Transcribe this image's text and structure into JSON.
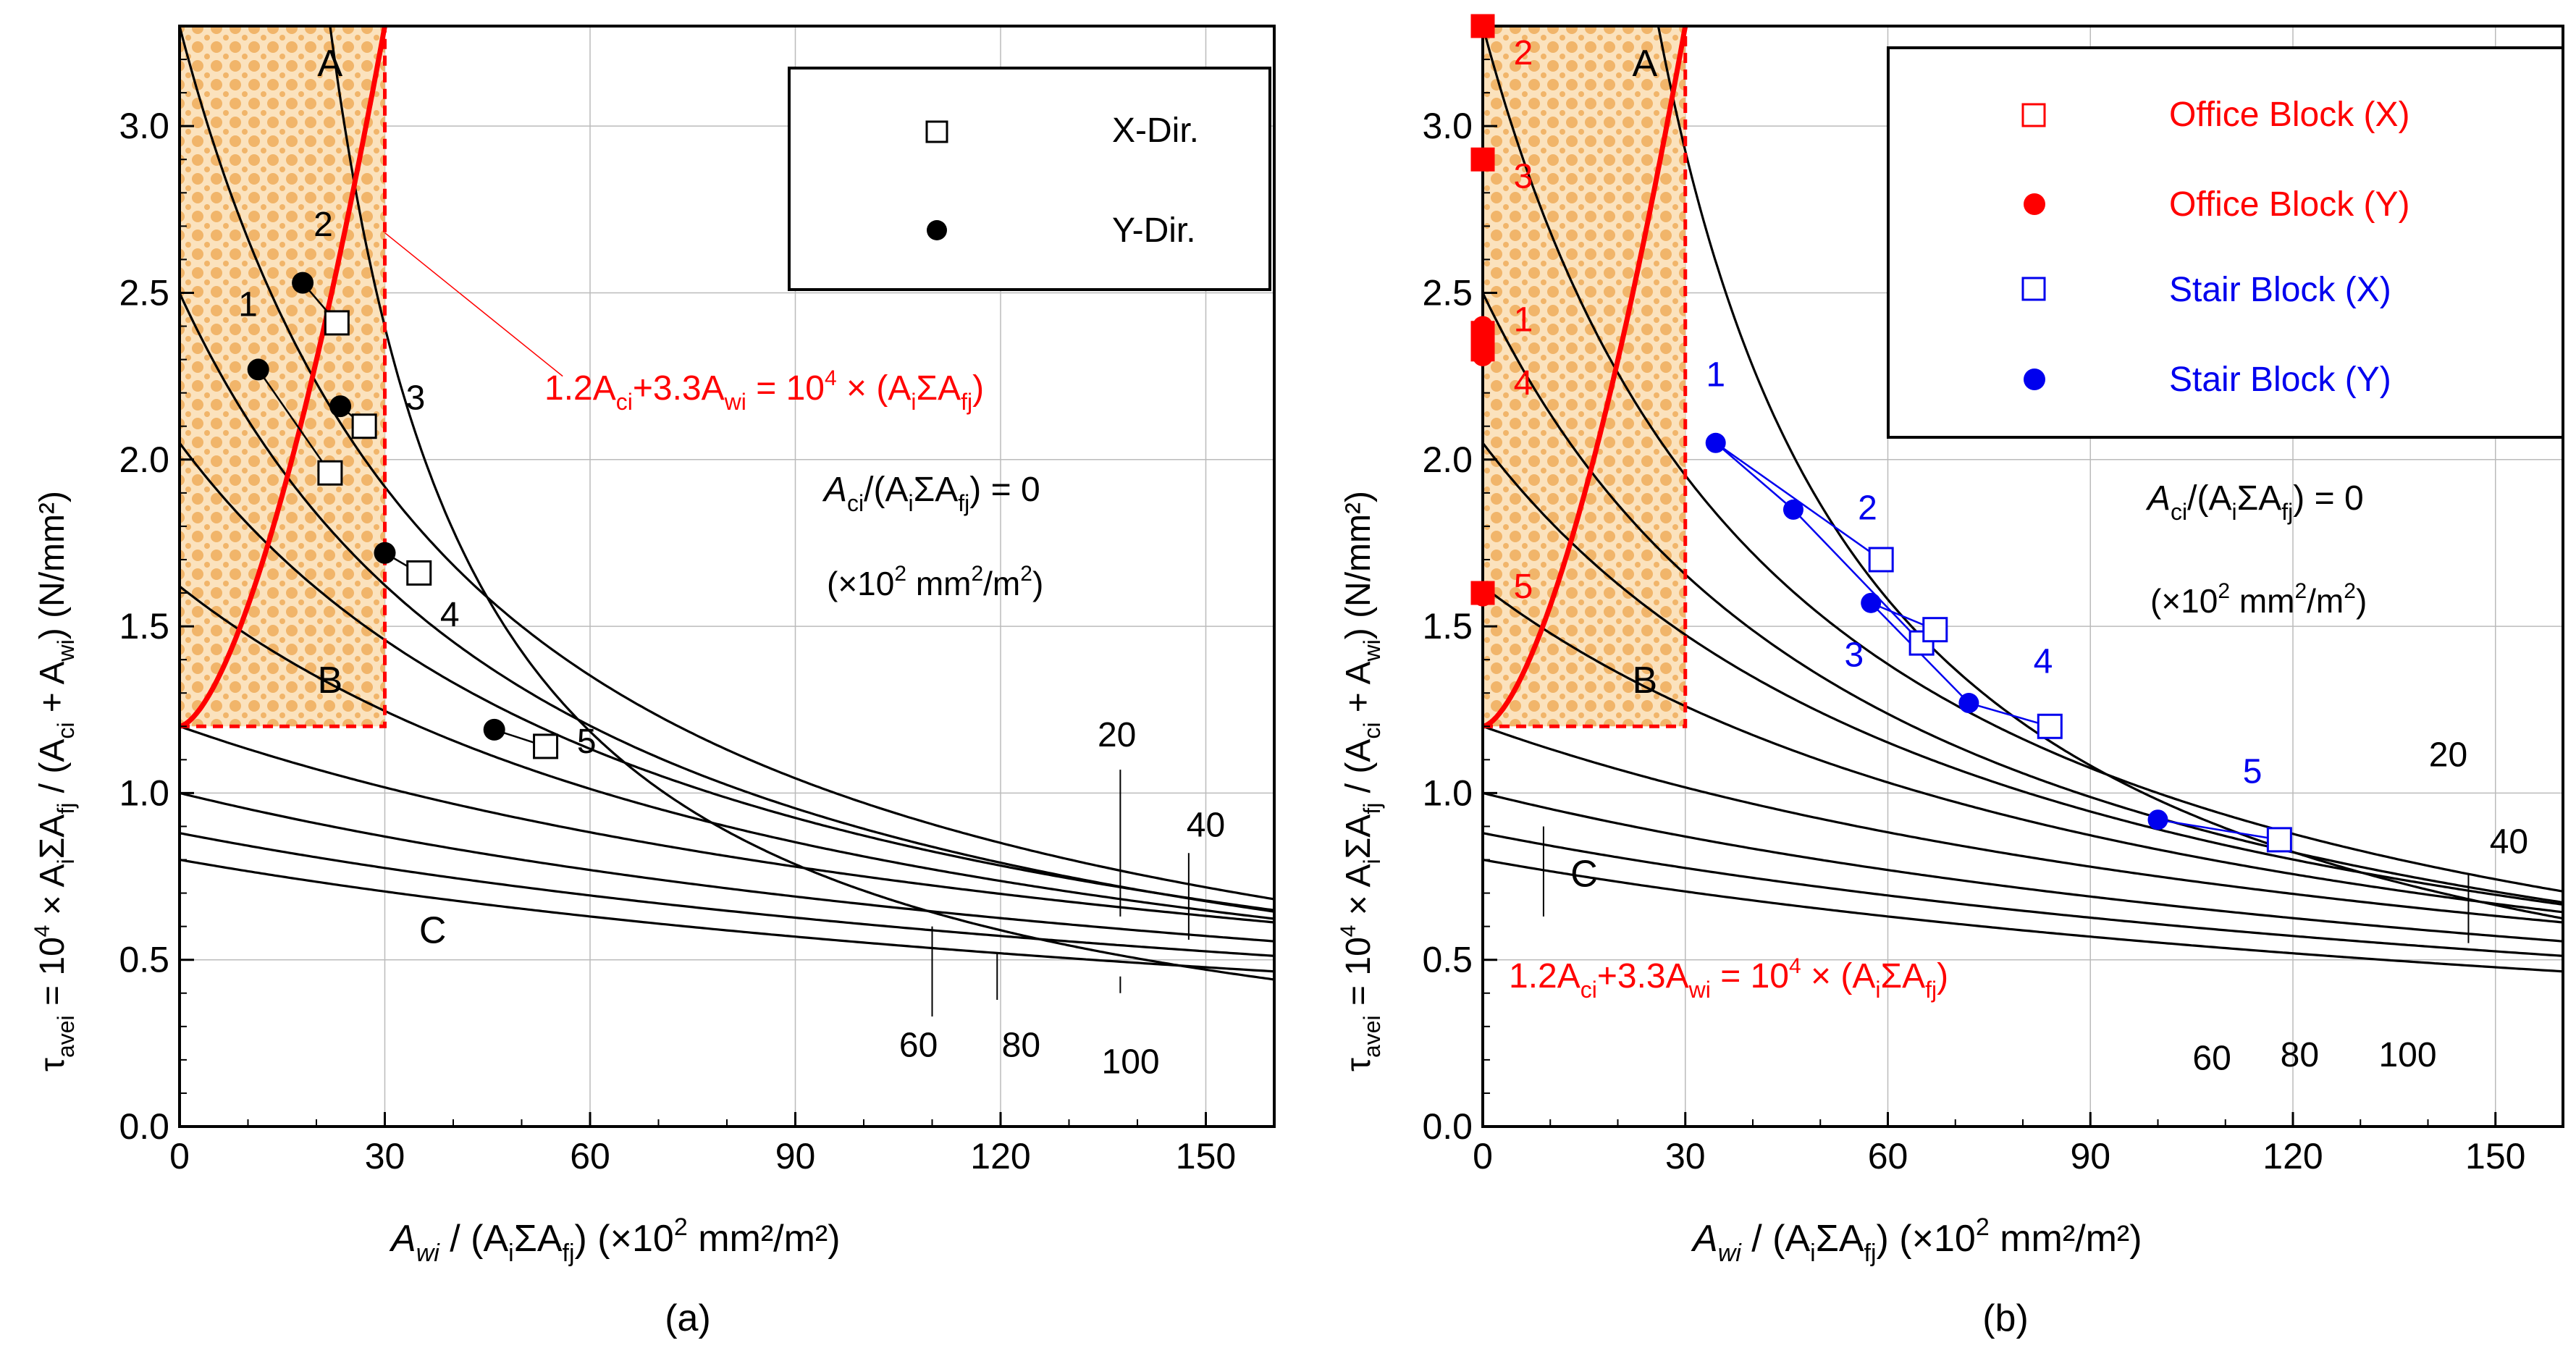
{
  "colors": {
    "axis": "#000000",
    "grid": "#bbbbbb",
    "red": "#ff0000",
    "blue": "#0000ee",
    "hatch_fill": "#f6c98e",
    "hatch_stroke": "#e39a3a"
  },
  "chart_data": [
    {
      "type": "scatter",
      "panel_label": "(a)",
      "xlim": [
        0,
        160
      ],
      "ylim": [
        0,
        3.3
      ],
      "x_ticks": [
        "0",
        "30",
        "60",
        "90",
        "120",
        "150"
      ],
      "y_ticks": [
        "0.0",
        "0.5",
        "1.0",
        "1.5",
        "2.0",
        "2.5",
        "3.0"
      ],
      "grid": true,
      "xlabel": {
        "a1": "A",
        "s1": "wi",
        "mid": " / (A",
        "s2": "i",
        "mid2": "ΣA",
        "s3": "fj",
        "tail": ") (×10",
        "sup": "2",
        "end": " mm²/m²)"
      },
      "ylabel": {
        "t1": "τ",
        "s1": "avei",
        "t2": " = 10",
        "sup": "4",
        "t3": " × A",
        "s2": "i",
        "t4": "ΣA",
        "s3": "fj",
        "t5": " / (A",
        "s4": "ci",
        "t6": " + A",
        "s5": "wi",
        "t7": ") (N/mm²)"
      },
      "curve_labels": [
        {
          "text": "20",
          "x": 137,
          "y": 1.14
        },
        {
          "text": "40",
          "x": 150,
          "y": 0.87
        },
        {
          "text": "60",
          "x": 108,
          "y": 0.21
        },
        {
          "text": "80",
          "x": 123,
          "y": 0.21
        },
        {
          "text": "100",
          "x": 139,
          "y": 0.16
        }
      ],
      "zone_labels": [
        {
          "text": "A",
          "x": 22,
          "y": 3.15
        },
        {
          "text": "B",
          "x": 22,
          "y": 1.3
        },
        {
          "text": "C",
          "x": 37,
          "y": 0.55
        }
      ],
      "annotation": {
        "t1": "1.2A",
        "s1": "ci",
        "t2": "+3.3A",
        "s2": "wi",
        "t3": " = 10",
        "sup": "4",
        "t4": " × (A",
        "s3": "i",
        "t5": "ΣA",
        "s4": "fj",
        "t6": ")"
      },
      "zero_label": {
        "t1": "A",
        "s1": "ci",
        "t2": "/(A",
        "s2": "i",
        "t3": "ΣA",
        "s3": "fj",
        "t4": ") = 0"
      },
      "zero_unit": {
        "t1": "(×10",
        "sup": "2",
        "t2": " mm",
        "sup2": "2",
        "t3": "/m",
        "sup3": "2",
        "t4": ")"
      },
      "legend": [
        {
          "name": "X-Dir.",
          "marker": "square-open"
        },
        {
          "name": "Y-Dir.",
          "marker": "circle-filled"
        }
      ],
      "series": [
        {
          "name": "X-Dir.",
          "points": [
            {
              "x": 22,
              "y": 1.96
            },
            {
              "x": 23,
              "y": 2.41,
              "label": "2"
            },
            {
              "x": 27,
              "y": 2.1
            },
            {
              "x": 35,
              "y": 1.66
            },
            {
              "x": 53.5,
              "y": 1.14
            }
          ]
        },
        {
          "name": "Y-Dir.",
          "points": [
            {
              "x": 11.5,
              "y": 2.27,
              "label": "1"
            },
            {
              "x": 18,
              "y": 2.53
            },
            {
              "x": 23.5,
              "y": 2.16
            },
            {
              "x": 30,
              "y": 1.72
            },
            {
              "x": 46,
              "y": 1.19
            }
          ]
        }
      ],
      "point_labels": [
        {
          "text": "1",
          "x": 10,
          "y": 2.43
        },
        {
          "text": "2",
          "x": 21,
          "y": 2.67
        },
        {
          "text": "3",
          "x": 34.5,
          "y": 2.15
        },
        {
          "text": "4",
          "x": 39.5,
          "y": 1.5
        },
        {
          "text": "5",
          "x": 59.5,
          "y": 1.12
        }
      ]
    },
    {
      "type": "scatter",
      "panel_label": "(b)",
      "xlim": [
        0,
        160
      ],
      "ylim": [
        0,
        3.3
      ],
      "x_ticks": [
        "0",
        "30",
        "60",
        "90",
        "120",
        "150"
      ],
      "y_ticks": [
        "0.0",
        "0.5",
        "1.0",
        "1.5",
        "2.0",
        "2.5",
        "3.0"
      ],
      "grid": true,
      "xlabel": {
        "a1": "A",
        "s1": "wi",
        "mid": " / (A",
        "s2": "i",
        "mid2": "ΣA",
        "s3": "fj",
        "tail": ") (×10",
        "sup": "2",
        "end": " mm²/m²)"
      },
      "ylabel": {
        "t1": "τ",
        "s1": "avei",
        "t2": " = 10",
        "sup": "4",
        "t3": " × A",
        "s2": "i",
        "t4": "ΣA",
        "s3": "fj",
        "t5": " / (A",
        "s4": "ci",
        "t6": " + A",
        "s5": "wi",
        "t7": ") (N/mm²)"
      },
      "curve_labels": [
        {
          "text": "20",
          "x": 143,
          "y": 1.08
        },
        {
          "text": "40",
          "x": 152,
          "y": 0.82
        },
        {
          "text": "60",
          "x": 108,
          "y": 0.17
        },
        {
          "text": "80",
          "x": 121,
          "y": 0.18
        },
        {
          "text": "100",
          "x": 137,
          "y": 0.18
        }
      ],
      "zone_labels": [
        {
          "text": "A",
          "x": 24,
          "y": 3.15
        },
        {
          "text": "B",
          "x": 24,
          "y": 1.3
        },
        {
          "text": "C",
          "x": 15,
          "y": 0.72
        }
      ],
      "annotation": {
        "t1": "1.2A",
        "s1": "ci",
        "t2": "+3.3A",
        "s2": "wi",
        "t3": " = 10",
        "sup": "4",
        "t4": " × (A",
        "s3": "i",
        "t5": "ΣA",
        "s4": "fj",
        "t6": ")"
      },
      "zero_label": {
        "t1": "A",
        "s1": "ci",
        "t2": "/(A",
        "s2": "i",
        "t3": "ΣA",
        "s3": "fj",
        "t4": ") = 0"
      },
      "zero_unit": {
        "t1": "(×10",
        "sup": "2",
        "t2": " mm",
        "sup2": "2",
        "t3": "/m",
        "sup3": "2",
        "t4": ")"
      },
      "legend": [
        {
          "name": "Office Block (X)",
          "marker": "square-open",
          "color": "#ff0000"
        },
        {
          "name": "Office Block (Y)",
          "marker": "circle-filled",
          "color": "#ff0000"
        },
        {
          "name": "Stair Block (X)",
          "marker": "square-open",
          "color": "#0000ee"
        },
        {
          "name": "Stair Block (Y)",
          "marker": "circle-filled",
          "color": "#0000ee"
        }
      ],
      "series": [
        {
          "name": "Office Block (X)",
          "points": [
            {
              "x": 0,
              "y": 3.3
            },
            {
              "x": 0,
              "y": 2.9
            },
            {
              "x": 0,
              "y": 2.38
            },
            {
              "x": 0,
              "y": 2.33
            },
            {
              "x": 0,
              "y": 1.6
            }
          ]
        },
        {
          "name": "Office Block (Y)",
          "points": [
            {
              "x": 0,
              "y": 3.3
            },
            {
              "x": 0,
              "y": 2.9
            },
            {
              "x": 0,
              "y": 2.4
            },
            {
              "x": 0,
              "y": 2.31
            },
            {
              "x": 0,
              "y": 1.59
            }
          ]
        },
        {
          "name": "Stair Block (X)",
          "points": [
            {
              "x": 59,
              "y": 1.7
            },
            {
              "x": 65,
              "y": 1.45
            },
            {
              "x": 67,
              "y": 1.49
            },
            {
              "x": 84,
              "y": 1.2
            },
            {
              "x": 118,
              "y": 0.86
            }
          ]
        },
        {
          "name": "Stair Block (Y)",
          "points": [
            {
              "x": 34.5,
              "y": 2.05
            },
            {
              "x": 46,
              "y": 1.85
            },
            {
              "x": 57.5,
              "y": 1.57
            },
            {
              "x": 72,
              "y": 1.27
            },
            {
              "x": 100,
              "y": 0.92
            }
          ]
        }
      ],
      "point_labels_red": [
        {
          "text": "2",
          "x": 6,
          "y": 3.22
        },
        {
          "text": "3",
          "x": 6,
          "y": 2.85
        },
        {
          "text": "1",
          "x": 6,
          "y": 2.42
        },
        {
          "text": "4",
          "x": 6,
          "y": 2.23
        },
        {
          "text": "5",
          "x": 6,
          "y": 1.62
        }
      ],
      "point_labels_blue": [
        {
          "text": "1",
          "x": 34.5,
          "y": 2.22
        },
        {
          "text": "2",
          "x": 57,
          "y": 1.82
        },
        {
          "text": "3",
          "x": 55,
          "y": 1.38
        },
        {
          "text": "4",
          "x": 83,
          "y": 1.36
        },
        {
          "text": "5",
          "x": 114,
          "y": 1.03
        }
      ]
    }
  ]
}
